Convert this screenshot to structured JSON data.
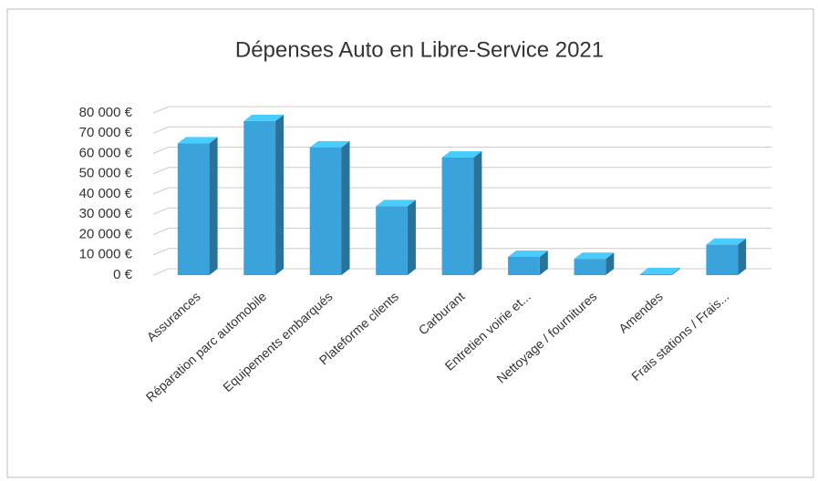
{
  "chart_data": {
    "type": "bar",
    "title": "Dépenses Auto en Libre-Service 2021",
    "categories": [
      "Assurances",
      "Réparation parc automobile",
      "Equipements embarqués",
      "Plateforme clients",
      "Carburant",
      "Entretien voirie et...",
      "Nettoyage / fournitures",
      "Amendes",
      "Frais stations / Frais..."
    ],
    "values": [
      65000,
      76000,
      63000,
      34000,
      58000,
      9000,
      8000,
      500,
      15000
    ],
    "color": "#3aa3dc",
    "ylim": [
      0,
      80000
    ],
    "yticks": [
      {
        "value": 0,
        "label": "0 €"
      },
      {
        "value": 10000,
        "label": "10 000 €"
      },
      {
        "value": 20000,
        "label": "20 000 €"
      },
      {
        "value": 30000,
        "label": "30 000 €"
      },
      {
        "value": 40000,
        "label": "40 000 €"
      },
      {
        "value": 50000,
        "label": "50 000 €"
      },
      {
        "value": 60000,
        "label": "60 000 €"
      },
      {
        "value": 70000,
        "label": "70 000 €"
      },
      {
        "value": 80000,
        "label": "80 000 €"
      }
    ],
    "grid": true
  }
}
